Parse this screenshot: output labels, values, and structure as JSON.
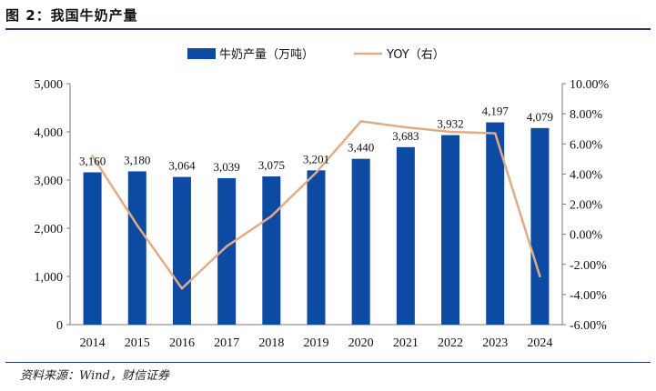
{
  "figure": {
    "title": "图 2：我国牛奶产量",
    "source": "资料来源：Wind，财信证券"
  },
  "chart_data": {
    "type": "bar",
    "categories": [
      "2014",
      "2015",
      "2016",
      "2017",
      "2018",
      "2019",
      "2020",
      "2021",
      "2022",
      "2023",
      "2024"
    ],
    "series": [
      {
        "name": "牛奶产量（万吨）",
        "type": "bar",
        "axis": "left",
        "color": "#0d4aa3",
        "values": [
          3160,
          3180,
          3064,
          3039,
          3075,
          3201,
          3440,
          3683,
          3932,
          4197,
          4079
        ],
        "labels": [
          "3,160",
          "3,180",
          "3,064",
          "3,039",
          "3,075",
          "3,201",
          "3,440",
          "3,683",
          "3,932",
          "4,197",
          "4,079"
        ]
      },
      {
        "name": "YOY（右）",
        "type": "line",
        "axis": "right",
        "color": "#e0ac86",
        "values": [
          5.2,
          0.6,
          -3.6,
          -0.8,
          1.2,
          4.1,
          7.5,
          7.1,
          6.8,
          6.7,
          -2.8
        ]
      }
    ],
    "y_left": {
      "min": 0,
      "max": 5000,
      "ticks": [
        0,
        1000,
        2000,
        3000,
        4000,
        5000
      ],
      "tick_labels": [
        "0",
        "1,000",
        "2,000",
        "3,000",
        "4,000",
        "5,000"
      ]
    },
    "y_right": {
      "min": -6,
      "max": 10,
      "ticks": [
        -6,
        -4,
        -2,
        0,
        2,
        4,
        6,
        8,
        10
      ],
      "tick_labels": [
        "-6.00%",
        "-4.00%",
        "-2.00%",
        "0.00%",
        "2.00%",
        "4.00%",
        "6.00%",
        "8.00%",
        "10.00%"
      ]
    },
    "legend": {
      "position": "top-center"
    },
    "grid": false
  }
}
